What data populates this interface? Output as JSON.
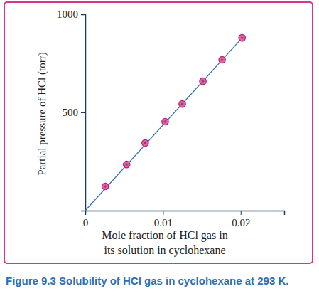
{
  "chart_data": {
    "type": "scatter",
    "title": "Figure 9.3 Solubility of HCl gas in cyclohexane at 293 K.",
    "xlabel": [
      "Mole fraction of HCl gas in",
      "its solution in cyclohexane"
    ],
    "ylabel": "Partial pressure of HCl (torr)",
    "xlim": [
      0,
      0.0256
    ],
    "ylim": [
      0,
      1000
    ],
    "xticks": [
      0,
      0.01,
      0.02
    ],
    "yticks": [
      500,
      1000
    ],
    "grid": false,
    "series": [
      {
        "type": "line",
        "color": "#2e6db4",
        "line_style": "solid",
        "x": [
          0,
          0.0202
        ],
        "values": [
          0,
          880
        ]
      },
      {
        "type": "scatter",
        "color": "#e8609a",
        "marker": "circle",
        "x": [
          0.00257,
          0.00532,
          0.00771,
          0.01028,
          0.01248,
          0.01514,
          0.01761,
          0.02018
        ],
        "values": [
          123,
          235,
          344,
          453,
          543,
          659,
          768,
          880
        ]
      }
    ]
  }
}
